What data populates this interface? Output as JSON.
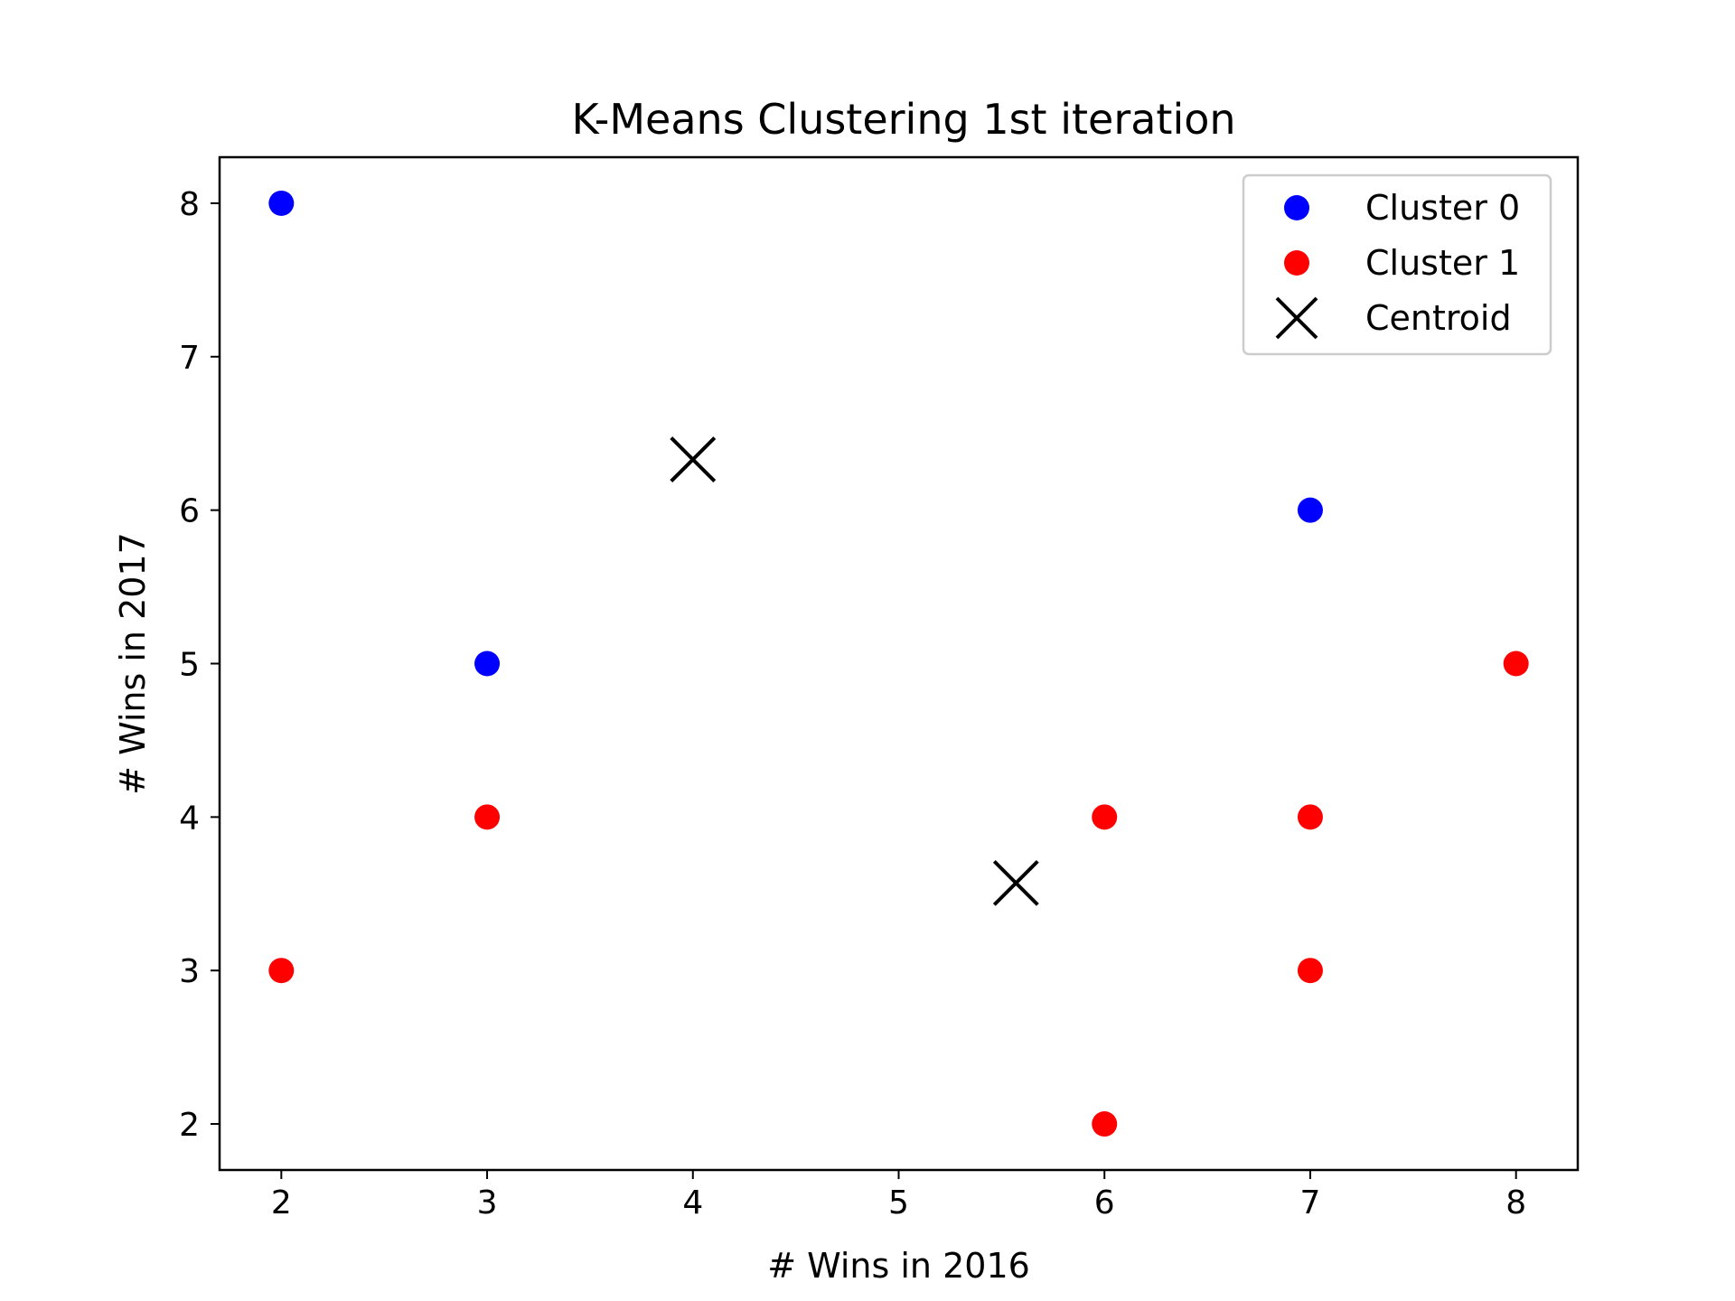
{
  "chart_data": {
    "type": "scatter",
    "title": "K-Means Clustering 1st iteration",
    "xlabel": "# Wins in 2016",
    "ylabel": "# Wins in 2017",
    "xlim": [
      1.7,
      8.3
    ],
    "ylim": [
      1.7,
      8.3
    ],
    "xticks": [
      2,
      3,
      4,
      5,
      6,
      7,
      8
    ],
    "yticks": [
      2,
      3,
      4,
      5,
      6,
      7,
      8
    ],
    "grid": false,
    "legend_position": "top-right",
    "series": [
      {
        "name": "Cluster 0",
        "marker": "circle",
        "color": "#0000ff",
        "points": [
          [
            2,
            8
          ],
          [
            3,
            5
          ],
          [
            7,
            6
          ]
        ]
      },
      {
        "name": "Cluster 1",
        "marker": "circle",
        "color": "#ff0000",
        "points": [
          [
            2,
            3
          ],
          [
            3,
            4
          ],
          [
            6,
            4
          ],
          [
            6,
            2
          ],
          [
            7,
            4
          ],
          [
            7,
            3
          ],
          [
            8,
            5
          ]
        ]
      },
      {
        "name": "Centroid",
        "marker": "x",
        "color": "#000000",
        "points": [
          [
            4.0,
            6.33
          ],
          [
            5.57,
            3.57
          ]
        ]
      }
    ]
  }
}
